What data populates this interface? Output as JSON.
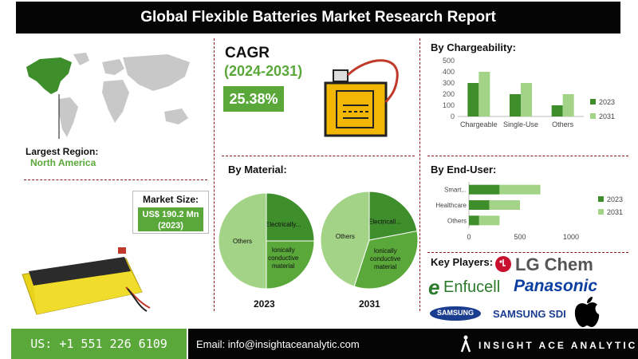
{
  "header": {
    "title": "Global Flexible Batteries Market Research Report"
  },
  "region": {
    "label": "Largest Region:",
    "value": "North America"
  },
  "cagr": {
    "label": "CAGR",
    "period": "(2024-2031)",
    "value": "25.38%"
  },
  "market_size": {
    "label": "Market Size:",
    "value_line1": "US$ 190.2 Mn",
    "value_line2": "(2023)"
  },
  "sections": {
    "chargeability": "By Chargeability:",
    "material": "By Material:",
    "end_user": "By End-User:",
    "key_players": "Key Players:"
  },
  "key_players": {
    "lg": "LG Chem",
    "enfucell": "Enfucell",
    "panasonic": "Panasonic",
    "samsung": "SAMSUNG",
    "samsung_sdi": "SAMSUNG SDI"
  },
  "footer": {
    "phone": "US: +1 551 226 6109",
    "email": "Email: info@insightaceanalytic.com",
    "brand": "INSIGHT ACE ANALYTIC"
  },
  "colors": {
    "dark_green": "#3e8e2c",
    "light_green": "#a3d386",
    "accent_green": "#5aa83a",
    "map_highlight": "#3e8e2c",
    "map_gray": "#c8c8c8"
  },
  "chart_data": [
    {
      "type": "bar",
      "title": "By Chargeability:",
      "categories": [
        "Chargeable",
        "Single-Use",
        "Others"
      ],
      "series": [
        {
          "name": "2023",
          "values": [
            300,
            200,
            100
          ]
        },
        {
          "name": "2031",
          "values": [
            400,
            300,
            200
          ]
        }
      ],
      "ylim": [
        0,
        500
      ],
      "yticks": [
        0,
        100,
        200,
        300,
        400,
        500
      ],
      "legend": "right",
      "grid": false
    },
    {
      "type": "pie",
      "label": "2023",
      "slices": [
        {
          "name": "Electrically...",
          "value": 25
        },
        {
          "name": "Ionically conductive material",
          "value": 25
        },
        {
          "name": "Others",
          "value": 50
        }
      ]
    },
    {
      "type": "pie",
      "label": "2031",
      "slices": [
        {
          "name": "Electricall...",
          "value": 22
        },
        {
          "name": "Ionically conductive material",
          "value": 33
        },
        {
          "name": "Others",
          "value": 45
        }
      ]
    },
    {
      "type": "bar",
      "orientation": "horizontal",
      "title": "By End-User:",
      "categories": [
        "Smart...",
        "Healthcare",
        "Others"
      ],
      "series": [
        {
          "name": "2023",
          "values": [
            300,
            200,
            100
          ]
        },
        {
          "name": "2031",
          "values": [
            400,
            300,
            200
          ]
        }
      ],
      "xlim": [
        0,
        1000
      ],
      "xticks": [
        0,
        500,
        1000
      ],
      "legend": "right",
      "stacked": true,
      "grid": false
    }
  ]
}
